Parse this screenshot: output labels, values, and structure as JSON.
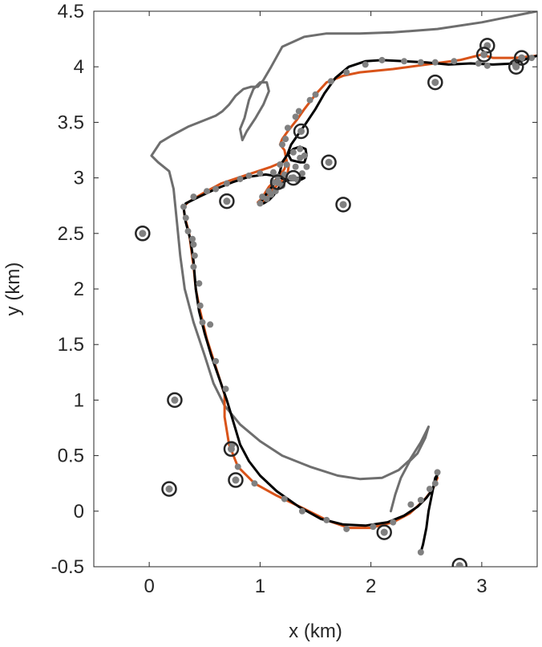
{
  "chart_data": {
    "type": "scatter",
    "title": "",
    "xlabel": "x (km)",
    "ylabel": "y (km)",
    "xlim": [
      -0.5,
      3.5
    ],
    "ylim": [
      -0.5,
      4.5
    ],
    "xticks": [
      0,
      1,
      2,
      3
    ],
    "xtick_labels": [
      "0",
      "1",
      "2",
      "3"
    ],
    "yticks": [
      -0.5,
      0,
      0.5,
      1,
      1.5,
      2,
      2.5,
      3,
      3.5,
      4,
      4.5
    ],
    "ytick_labels": [
      "-0.5",
      "0",
      "0.5",
      "1",
      "1.5",
      "2",
      "2.5",
      "3",
      "3.5",
      "4",
      "4.5"
    ],
    "grid": false,
    "colors": {
      "gray_line": "#6e6e6e",
      "orange_line": "#d95319",
      "black_line": "#000000",
      "points": "#808080",
      "ring": "#262626"
    },
    "series": [
      {
        "kind": "line",
        "color": "#6e6e6e",
        "points": [
          [
            3.5,
            4.5
          ],
          [
            3.3,
            4.46
          ],
          [
            3.0,
            4.4
          ],
          [
            2.6,
            4.34
          ],
          [
            2.2,
            4.31
          ],
          [
            1.9,
            4.3
          ],
          [
            1.6,
            4.3
          ],
          [
            1.4,
            4.27
          ],
          [
            1.2,
            4.18
          ],
          [
            1.1,
            4.0
          ],
          [
            1.03,
            3.88
          ],
          [
            0.98,
            3.82
          ],
          [
            0.92,
            3.82
          ],
          [
            0.85,
            3.8
          ],
          [
            0.78,
            3.74
          ],
          [
            0.72,
            3.66
          ],
          [
            0.66,
            3.6
          ],
          [
            0.6,
            3.56
          ],
          [
            0.5,
            3.52
          ],
          [
            0.35,
            3.46
          ],
          [
            0.2,
            3.38
          ],
          [
            0.1,
            3.32
          ],
          [
            0.02,
            3.2
          ],
          [
            0.08,
            3.14
          ],
          [
            0.18,
            3.06
          ],
          [
            0.22,
            2.9
          ],
          [
            0.25,
            2.6
          ],
          [
            0.28,
            2.3
          ],
          [
            0.32,
            2.0
          ],
          [
            0.4,
            1.7
          ],
          [
            0.5,
            1.4
          ],
          [
            0.58,
            1.15
          ],
          [
            0.68,
            0.95
          ],
          [
            0.82,
            0.78
          ],
          [
            1.0,
            0.63
          ],
          [
            1.2,
            0.5
          ],
          [
            1.45,
            0.4
          ],
          [
            1.7,
            0.32
          ],
          [
            1.9,
            0.29
          ],
          [
            2.1,
            0.3
          ],
          [
            2.25,
            0.37
          ],
          [
            2.35,
            0.46
          ],
          [
            2.45,
            0.62
          ],
          [
            2.5,
            0.72
          ],
          [
            2.52,
            0.76
          ],
          [
            2.49,
            0.66
          ],
          [
            2.42,
            0.52
          ],
          [
            2.35,
            0.45
          ],
          [
            2.27,
            0.3
          ],
          [
            2.22,
            0.15
          ],
          [
            2.18,
            0.0
          ]
        ]
      },
      {
        "kind": "line",
        "color": "#6e6e6e",
        "points": [
          [
            0.84,
            3.34
          ],
          [
            0.88,
            3.42
          ],
          [
            0.96,
            3.54
          ],
          [
            1.03,
            3.66
          ],
          [
            1.08,
            3.78
          ],
          [
            1.06,
            3.86
          ],
          [
            1.0,
            3.86
          ],
          [
            0.94,
            3.8
          ],
          [
            0.9,
            3.7
          ],
          [
            0.86,
            3.54
          ],
          [
            0.82,
            3.44
          ],
          [
            0.84,
            3.34
          ]
        ]
      },
      {
        "kind": "line",
        "color": "#d95319",
        "points": [
          [
            3.5,
            4.1
          ],
          [
            3.3,
            4.08
          ],
          [
            3.1,
            4.08
          ],
          [
            3.0,
            4.11
          ],
          [
            2.8,
            4.06
          ],
          [
            2.5,
            4.02
          ],
          [
            2.2,
            3.98
          ],
          [
            1.9,
            3.95
          ],
          [
            1.75,
            3.92
          ],
          [
            1.6,
            3.86
          ],
          [
            1.5,
            3.75
          ],
          [
            1.4,
            3.62
          ],
          [
            1.33,
            3.52
          ],
          [
            1.25,
            3.42
          ],
          [
            1.2,
            3.35
          ],
          [
            1.18,
            3.3
          ],
          [
            1.22,
            3.25
          ],
          [
            1.24,
            3.15
          ],
          [
            1.22,
            3.08
          ],
          [
            1.16,
            3.0
          ],
          [
            1.08,
            2.92
          ],
          [
            1.03,
            2.84
          ],
          [
            1.0,
            2.8
          ],
          [
            0.98,
            2.78
          ],
          [
            1.02,
            2.78
          ],
          [
            1.08,
            2.85
          ],
          [
            1.12,
            2.9
          ],
          [
            1.2,
            2.98
          ],
          [
            1.25,
            3.05
          ],
          [
            1.26,
            3.12
          ],
          [
            1.22,
            3.15
          ],
          [
            1.1,
            3.1
          ],
          [
            0.95,
            3.05
          ],
          [
            0.8,
            3.0
          ],
          [
            0.65,
            2.95
          ],
          [
            0.5,
            2.87
          ],
          [
            0.35,
            2.78
          ],
          [
            0.31,
            2.74
          ],
          [
            0.32,
            2.65
          ],
          [
            0.36,
            2.5
          ],
          [
            0.38,
            2.35
          ],
          [
            0.4,
            2.2
          ],
          [
            0.42,
            2.0
          ],
          [
            0.46,
            1.8
          ],
          [
            0.52,
            1.55
          ],
          [
            0.6,
            1.3
          ],
          [
            0.68,
            1.05
          ],
          [
            0.68,
            0.85
          ],
          [
            0.72,
            0.6
          ],
          [
            0.8,
            0.4
          ],
          [
            0.95,
            0.25
          ],
          [
            1.15,
            0.14
          ],
          [
            1.4,
            0.02
          ],
          [
            1.6,
            -0.08
          ],
          [
            1.8,
            -0.15
          ],
          [
            2.0,
            -0.15
          ],
          [
            2.2,
            -0.1
          ],
          [
            2.35,
            -0.02
          ],
          [
            2.48,
            0.1
          ],
          [
            2.56,
            0.2
          ],
          [
            2.6,
            0.3
          ]
        ]
      },
      {
        "kind": "line",
        "color": "#000000",
        "points": [
          [
            3.5,
            4.1
          ],
          [
            3.4,
            4.07
          ],
          [
            3.3,
            4.03
          ],
          [
            3.1,
            4.02
          ],
          [
            2.9,
            4.03
          ],
          [
            2.7,
            4.02
          ],
          [
            2.5,
            4.04
          ],
          [
            2.3,
            4.05
          ],
          [
            2.1,
            4.06
          ],
          [
            1.95,
            4.05
          ],
          [
            1.8,
            4.0
          ],
          [
            1.68,
            3.9
          ],
          [
            1.58,
            3.76
          ],
          [
            1.5,
            3.62
          ],
          [
            1.42,
            3.5
          ],
          [
            1.35,
            3.4
          ],
          [
            1.28,
            3.3
          ],
          [
            1.25,
            3.22
          ],
          [
            1.28,
            3.16
          ],
          [
            1.36,
            3.14
          ],
          [
            1.4,
            3.14
          ],
          [
            1.42,
            3.2
          ],
          [
            1.41,
            3.26
          ],
          [
            1.36,
            3.28
          ],
          [
            1.3,
            3.26
          ],
          [
            1.24,
            3.2
          ],
          [
            1.2,
            3.14
          ],
          [
            1.18,
            3.06
          ],
          [
            1.14,
            2.96
          ],
          [
            1.06,
            2.86
          ],
          [
            1.01,
            2.79
          ],
          [
            1.0,
            2.77
          ],
          [
            1.03,
            2.77
          ],
          [
            1.08,
            2.8
          ],
          [
            1.12,
            2.84
          ],
          [
            1.16,
            2.9
          ],
          [
            1.2,
            2.95
          ],
          [
            1.24,
            2.98
          ],
          [
            1.3,
            3.0
          ],
          [
            1.36,
            3.0
          ],
          [
            1.4,
            3.0
          ],
          [
            1.36,
            2.98
          ],
          [
            1.26,
            2.98
          ],
          [
            1.18,
            3.0
          ],
          [
            1.12,
            3.02
          ],
          [
            1.05,
            3.03
          ],
          [
            0.9,
            3.01
          ],
          [
            0.75,
            2.96
          ],
          [
            0.6,
            2.9
          ],
          [
            0.45,
            2.83
          ],
          [
            0.33,
            2.77
          ],
          [
            0.31,
            2.73
          ],
          [
            0.33,
            2.6
          ],
          [
            0.37,
            2.45
          ],
          [
            0.4,
            2.25
          ],
          [
            0.42,
            2.0
          ],
          [
            0.45,
            1.8
          ],
          [
            0.5,
            1.6
          ],
          [
            0.56,
            1.4
          ],
          [
            0.63,
            1.2
          ],
          [
            0.7,
            1.0
          ],
          [
            0.76,
            0.8
          ],
          [
            0.82,
            0.6
          ],
          [
            0.9,
            0.45
          ],
          [
            1.0,
            0.32
          ],
          [
            1.15,
            0.18
          ],
          [
            1.35,
            0.04
          ],
          [
            1.55,
            -0.07
          ],
          [
            1.75,
            -0.12
          ],
          [
            1.95,
            -0.13
          ],
          [
            2.15,
            -0.1
          ],
          [
            2.3,
            -0.04
          ],
          [
            2.42,
            0.04
          ],
          [
            2.5,
            0.12
          ],
          [
            2.56,
            0.2
          ],
          [
            2.6,
            0.33
          ],
          [
            2.58,
            0.3
          ],
          [
            2.55,
            0.15
          ],
          [
            2.52,
            0.0
          ],
          [
            2.5,
            -0.15
          ],
          [
            2.47,
            -0.3
          ],
          [
            2.45,
            -0.37
          ]
        ]
      },
      {
        "kind": "points",
        "color": "#808080",
        "points": [
          [
            3.45,
            4.08
          ],
          [
            3.3,
            4.02
          ],
          [
            3.05,
            4.01
          ],
          [
            2.97,
            4.03
          ],
          [
            2.75,
            4.05
          ],
          [
            2.58,
            4.04
          ],
          [
            2.45,
            4.04
          ],
          [
            2.3,
            4.05
          ],
          [
            2.1,
            4.06
          ],
          [
            1.95,
            4.02
          ],
          [
            1.78,
            3.95
          ],
          [
            1.64,
            3.87
          ],
          [
            1.5,
            3.75
          ],
          [
            1.45,
            3.7
          ],
          [
            1.35,
            3.6
          ],
          [
            1.32,
            3.55
          ],
          [
            1.25,
            3.45
          ],
          [
            1.23,
            3.35
          ],
          [
            1.2,
            3.3
          ],
          [
            1.3,
            3.23
          ],
          [
            1.36,
            3.18
          ],
          [
            1.4,
            3.2
          ],
          [
            1.42,
            3.1
          ],
          [
            1.38,
            3.04
          ],
          [
            1.34,
            2.98
          ],
          [
            1.28,
            3.0
          ],
          [
            1.22,
            3.03
          ],
          [
            1.16,
            3.01
          ],
          [
            1.12,
            2.96
          ],
          [
            1.08,
            2.88
          ],
          [
            1.02,
            2.83
          ],
          [
            1.0,
            2.77
          ],
          [
            1.06,
            2.81
          ],
          [
            1.1,
            2.85
          ],
          [
            1.14,
            2.88
          ],
          [
            1.2,
            2.93
          ],
          [
            1.24,
            3.12
          ],
          [
            1.18,
            3.12
          ],
          [
            1.12,
            3.05
          ],
          [
            1.0,
            3.04
          ],
          [
            0.9,
            3.02
          ],
          [
            0.82,
            2.99
          ],
          [
            0.7,
            2.95
          ],
          [
            0.6,
            2.9
          ],
          [
            0.52,
            2.88
          ],
          [
            0.4,
            2.83
          ],
          [
            0.31,
            2.74
          ],
          [
            0.33,
            2.64
          ],
          [
            0.35,
            2.52
          ],
          [
            0.39,
            2.45
          ],
          [
            0.4,
            2.4
          ],
          [
            0.41,
            2.3
          ],
          [
            0.4,
            2.2
          ],
          [
            0.45,
            2.05
          ],
          [
            0.46,
            1.85
          ],
          [
            0.48,
            1.7
          ],
          [
            0.55,
            1.68
          ],
          [
            0.6,
            1.35
          ],
          [
            0.69,
            1.1
          ],
          [
            0.75,
            0.6
          ],
          [
            0.8,
            0.4
          ],
          [
            0.95,
            0.25
          ],
          [
            1.22,
            0.11
          ],
          [
            1.38,
            0.0
          ],
          [
            1.6,
            -0.08
          ],
          [
            1.78,
            -0.16
          ],
          [
            2.02,
            -0.14
          ],
          [
            2.2,
            -0.1
          ],
          [
            2.36,
            0.06
          ],
          [
            2.45,
            0.1
          ],
          [
            2.53,
            0.2
          ],
          [
            2.58,
            0.25
          ],
          [
            2.6,
            0.35
          ],
          [
            2.45,
            -0.37
          ],
          [
            1.32,
            3.1
          ],
          [
            1.36,
            3.26
          ]
        ]
      },
      {
        "kind": "circled_points",
        "color": "#808080",
        "points": [
          [
            3.05,
            4.19
          ],
          [
            3.02,
            4.11
          ],
          [
            3.36,
            4.08
          ],
          [
            3.31,
            4.0
          ],
          [
            2.58,
            3.86
          ],
          [
            1.37,
            3.42
          ],
          [
            1.62,
            3.14
          ],
          [
            1.3,
            3.0
          ],
          [
            1.16,
            2.96
          ],
          [
            1.75,
            2.76
          ],
          [
            0.7,
            2.79
          ],
          [
            -0.06,
            2.5
          ],
          [
            0.23,
            1.0
          ],
          [
            0.74,
            0.56
          ],
          [
            0.78,
            0.28
          ],
          [
            0.18,
            0.2
          ],
          [
            2.12,
            -0.19
          ],
          [
            2.8,
            -0.49
          ]
        ]
      }
    ]
  }
}
